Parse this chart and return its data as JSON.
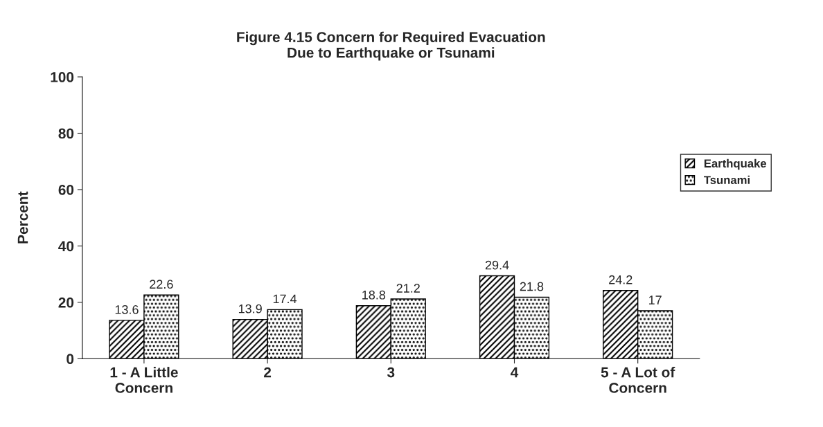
{
  "chart_data": {
    "type": "bar",
    "title": "Figure 4.15 Concern for Required Evacuation\nDue to Earthquake or Tsunami",
    "categories": [
      "1 - A Little\nConcern",
      "2",
      "3",
      "4",
      "5 - A Lot of\nConcern"
    ],
    "series": [
      {
        "name": "Earthquake",
        "color": "#000000",
        "values": [
          13.6,
          13.9,
          18.8,
          29.4,
          24.2
        ]
      },
      {
        "name": "Tsunami",
        "color": "#000000",
        "values": [
          22.6,
          17.4,
          21.2,
          21.8,
          17
        ]
      }
    ],
    "ylabel": "Percent",
    "ylim": [
      0,
      100
    ],
    "yticks": [
      0,
      20,
      40,
      60,
      80,
      100
    ],
    "data_labels": true,
    "legend": "right",
    "grid": false
  }
}
